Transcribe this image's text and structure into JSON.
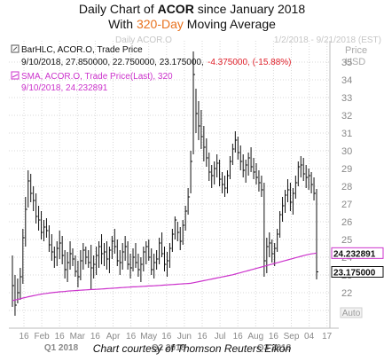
{
  "header": {
    "line1_prefix": "Daily Chart of ",
    "line1_ticker": "ACOR",
    "line1_suffix": " since January 2018",
    "line2_prefix": "With ",
    "line2_highlight": "320-Day",
    "line2_suffix": " Moving Average"
  },
  "watermark_left": "Daily ACOR.O",
  "watermark_right": "1/2/2018 - 9/21/2018 (EST)",
  "axis_unit_top": "Price",
  "axis_unit_bottom": "USD",
  "legend": {
    "bar_line1": "BarHLC, ACOR.O, Trade Price",
    "bar_line2_values": "9/10/2018, 27.850000, 22.750000, 23.175000,",
    "bar_line2_change": "-4.375000, (-15.88%)",
    "sma_line1": "SMA, ACOR.O, Trade Price(Last), 320",
    "sma_line2": "9/10/2018, 24.232891"
  },
  "auto_label": "Auto",
  "credit": "Chart courtesy of Thomson Reuters Eikon",
  "colors": {
    "price": "#111111",
    "sma": "#cc33cc",
    "down": "#e0202a",
    "grid": "#d8d8d8"
  },
  "chart_data": {
    "type": "line",
    "ylim": [
      20.5,
      36.2
    ],
    "y_ticks": [
      21,
      22,
      23,
      24,
      25,
      26,
      27,
      28,
      29,
      30,
      31,
      32,
      33,
      34,
      35
    ],
    "x_tick_labels": [
      "16",
      "Feb",
      "16",
      "Mar",
      "16",
      "Apr",
      "16",
      "May",
      "16",
      "Jun",
      "16",
      "Jul",
      "16",
      "Aug",
      "16",
      "Sep",
      "04",
      "17"
    ],
    "quarter_labels": [
      "Q1 2018",
      "Q2 2018",
      "Q3 2018"
    ],
    "price_tag_labels": [
      "24.232891",
      "23.175000"
    ],
    "price_tag_values": [
      24.232891,
      23.175
    ],
    "series": [
      {
        "name": "BarHLC, ACOR.O, Trade Price",
        "kind": "hlc",
        "points": [
          [
            24.1,
            21.2,
            22.4
          ],
          [
            23.0,
            20.7,
            21.3
          ],
          [
            22.8,
            21.4,
            22.0
          ],
          [
            23.4,
            21.6,
            22.9
          ],
          [
            25.6,
            22.5,
            25.1
          ],
          [
            27.4,
            24.6,
            26.7
          ],
          [
            28.9,
            26.8,
            28.3
          ],
          [
            28.7,
            27.1,
            27.6
          ],
          [
            28.0,
            26.6,
            27.2
          ],
          [
            27.6,
            25.9,
            26.3
          ],
          [
            26.9,
            25.5,
            26.1
          ],
          [
            26.6,
            25.0,
            25.4
          ],
          [
            26.1,
            24.9,
            25.7
          ],
          [
            26.2,
            25.1,
            25.5
          ],
          [
            25.8,
            24.3,
            24.7
          ],
          [
            25.3,
            23.8,
            24.3
          ],
          [
            24.6,
            23.4,
            24.0
          ],
          [
            24.9,
            23.5,
            24.5
          ],
          [
            25.5,
            23.9,
            24.8
          ],
          [
            25.2,
            23.6,
            24.1
          ],
          [
            24.4,
            22.8,
            23.3
          ],
          [
            24.3,
            22.6,
            23.7
          ],
          [
            24.9,
            23.3,
            24.2
          ],
          [
            24.5,
            23.5,
            23.9
          ],
          [
            24.1,
            22.9,
            23.2
          ],
          [
            23.8,
            22.3,
            22.9
          ],
          [
            24.4,
            22.7,
            23.8
          ],
          [
            24.8,
            23.3,
            24.4
          ],
          [
            24.6,
            23.6,
            24.0
          ],
          [
            24.4,
            23.4,
            23.7
          ],
          [
            24.7,
            22.2,
            23.4
          ],
          [
            24.1,
            22.8,
            23.6
          ],
          [
            24.6,
            23.0,
            24.1
          ],
          [
            24.9,
            23.4,
            24.6
          ],
          [
            25.3,
            23.6,
            24.2
          ],
          [
            24.8,
            23.5,
            24.3
          ],
          [
            24.9,
            23.3,
            23.9
          ],
          [
            24.6,
            23.1,
            24.4
          ],
          [
            25.2,
            23.9,
            24.9
          ],
          [
            25.6,
            24.2,
            24.6
          ],
          [
            25.0,
            23.5,
            23.8
          ],
          [
            24.4,
            23.0,
            23.7
          ],
          [
            24.8,
            23.3,
            24.3
          ],
          [
            25.2,
            23.8,
            24.6
          ],
          [
            24.9,
            23.3,
            23.6
          ],
          [
            24.2,
            22.8,
            23.4
          ],
          [
            24.5,
            23.2,
            24.0
          ],
          [
            24.8,
            23.4,
            23.7
          ],
          [
            24.2,
            22.9,
            23.3
          ],
          [
            24.0,
            22.6,
            23.6
          ],
          [
            24.6,
            23.2,
            24.3
          ],
          [
            24.9,
            23.6,
            24.6
          ],
          [
            25.0,
            23.8,
            24.0
          ],
          [
            24.5,
            23.0,
            23.3
          ],
          [
            24.2,
            22.8,
            23.7
          ],
          [
            24.4,
            23.3,
            23.9
          ],
          [
            25.1,
            23.6,
            24.8
          ],
          [
            25.4,
            24.0,
            24.2
          ],
          [
            24.6,
            23.2,
            23.6
          ],
          [
            24.3,
            22.9,
            23.8
          ],
          [
            24.8,
            23.4,
            24.5
          ],
          [
            25.6,
            24.3,
            25.3
          ],
          [
            26.3,
            25.0,
            26.1
          ],
          [
            26.0,
            24.9,
            25.4
          ],
          [
            25.7,
            24.4,
            24.9
          ],
          [
            26.1,
            24.7,
            25.8
          ],
          [
            26.9,
            25.5,
            26.6
          ],
          [
            27.9,
            26.4,
            27.4
          ],
          [
            30.0,
            27.6,
            29.4
          ],
          [
            35.6,
            29.8,
            34.3
          ],
          [
            33.5,
            31.0,
            32.1
          ],
          [
            32.8,
            30.6,
            31.4
          ],
          [
            32.3,
            30.1,
            30.8
          ],
          [
            31.4,
            29.4,
            30.2
          ],
          [
            30.7,
            29.1,
            29.6
          ],
          [
            29.9,
            28.3,
            28.8
          ],
          [
            29.2,
            27.9,
            28.6
          ],
          [
            29.4,
            28.1,
            29.0
          ],
          [
            29.8,
            28.5,
            29.3
          ],
          [
            29.5,
            28.0,
            28.4
          ],
          [
            28.8,
            27.6,
            28.1
          ],
          [
            28.6,
            27.4,
            27.9
          ],
          [
            28.9,
            27.6,
            28.6
          ],
          [
            29.7,
            28.4,
            29.4
          ],
          [
            30.4,
            29.2,
            30.1
          ],
          [
            31.1,
            29.9,
            30.6
          ],
          [
            30.8,
            29.5,
            29.9
          ],
          [
            30.3,
            28.9,
            29.4
          ],
          [
            29.8,
            28.5,
            28.9
          ],
          [
            29.5,
            28.2,
            29.2
          ],
          [
            29.9,
            28.6,
            29.6
          ],
          [
            30.2,
            28.8,
            29.1
          ],
          [
            29.6,
            28.4,
            28.8
          ],
          [
            29.3,
            28.1,
            28.5
          ],
          [
            28.9,
            27.7,
            28.2
          ],
          [
            28.6,
            27.4,
            27.8
          ],
          [
            28.2,
            22.9,
            23.8
          ],
          [
            25.1,
            23.1,
            24.6
          ],
          [
            25.4,
            24.0,
            24.8
          ],
          [
            25.0,
            23.7,
            24.2
          ],
          [
            24.8,
            23.5,
            24.5
          ],
          [
            25.6,
            24.3,
            25.3
          ],
          [
            26.6,
            25.1,
            26.4
          ],
          [
            27.4,
            26.0,
            26.9
          ],
          [
            27.8,
            26.5,
            27.5
          ],
          [
            28.4,
            27.1,
            27.8
          ],
          [
            28.2,
            26.6,
            27.1
          ],
          [
            27.9,
            26.4,
            27.6
          ],
          [
            28.6,
            27.3,
            28.2
          ],
          [
            29.4,
            28.0,
            29.1
          ],
          [
            29.7,
            28.5,
            29.2
          ],
          [
            29.6,
            28.3,
            28.7
          ],
          [
            29.2,
            27.9,
            28.5
          ],
          [
            29.0,
            27.8,
            28.6
          ],
          [
            28.8,
            27.6,
            28.1
          ],
          [
            28.5,
            27.2,
            27.6
          ],
          [
            27.85,
            22.75,
            23.175
          ]
        ]
      },
      {
        "name": "SMA, ACOR.O, Trade Price(Last), 320",
        "kind": "line",
        "values": [
          21.55,
          21.59,
          21.62,
          21.66,
          21.7,
          21.73,
          21.77,
          21.8,
          21.83,
          21.86,
          21.89,
          21.92,
          21.94,
          21.96,
          21.98,
          22.0,
          22.02,
          22.03,
          22.05,
          22.06,
          22.07,
          22.09,
          22.1,
          22.11,
          22.12,
          22.13,
          22.14,
          22.15,
          22.16,
          22.17,
          22.18,
          22.18,
          22.19,
          22.2,
          22.21,
          22.22,
          22.23,
          22.24,
          22.25,
          22.26,
          22.27,
          22.28,
          22.29,
          22.3,
          22.31,
          22.32,
          22.33,
          22.33,
          22.34,
          22.35,
          22.36,
          22.37,
          22.38,
          22.38,
          22.39,
          22.4,
          22.41,
          22.42,
          22.43,
          22.44,
          22.45,
          22.46,
          22.47,
          22.48,
          22.49,
          22.5,
          22.51,
          22.52,
          22.53,
          22.56,
          22.59,
          22.62,
          22.65,
          22.68,
          22.71,
          22.74,
          22.77,
          22.8,
          22.83,
          22.86,
          22.89,
          22.92,
          22.95,
          22.98,
          23.01,
          23.05,
          23.09,
          23.13,
          23.17,
          23.21,
          23.25,
          23.29,
          23.33,
          23.37,
          23.41,
          23.45,
          23.49,
          23.53,
          23.57,
          23.61,
          23.65,
          23.69,
          23.73,
          23.77,
          23.81,
          23.85,
          23.89,
          23.93,
          23.97,
          24.01,
          24.05,
          24.09,
          24.13,
          24.16,
          24.19,
          24.21,
          24.232891
        ]
      }
    ]
  }
}
